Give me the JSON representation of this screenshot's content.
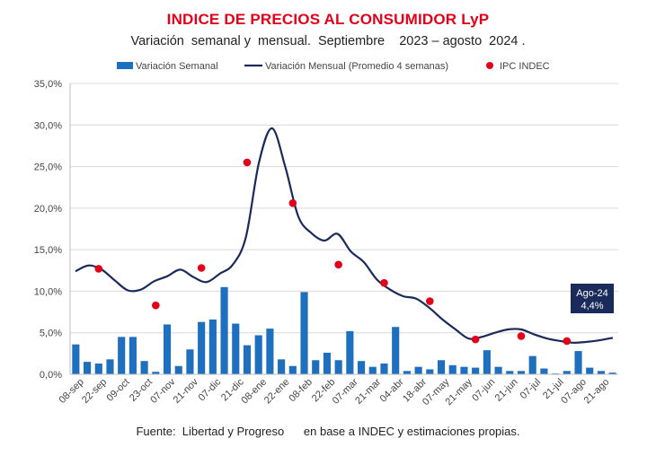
{
  "title": "INDICE DE PRECIOS AL CONSUMIDOR LyP",
  "subtitle": "Variación  semanal y  mensual.  Septiembre    2023 – agosto  2024 .",
  "source": "Fuente:  Libertad y Progreso      en base a INDEC y estimaciones propias.",
  "colors": {
    "bars": "#1f6fbf",
    "line": "#1a2a5a",
    "points": "#e3001b",
    "title": "#e3001b",
    "annotation_bg": "#1a2a5a"
  },
  "legend": {
    "bars": "Variación Semanal",
    "line": "Variación Mensual (Promedio 4 semanas)",
    "points": "IPC INDEC"
  },
  "annotation": {
    "label": "Ago-24",
    "value": "4,4%"
  },
  "chart_data": {
    "type": "bar",
    "ylim": [
      0,
      35
    ],
    "yticks": [
      "0,0%",
      "5,0%",
      "10,0%",
      "15,0%",
      "20,0%",
      "25,0%",
      "30,0%",
      "35,0%"
    ],
    "xticks": [
      "08-sep",
      "22-sep",
      "09-oct",
      "23-oct",
      "07-nov",
      "21-nov",
      "07-dic",
      "21-dic",
      "08-ene",
      "22-ene",
      "08-feb",
      "22-feb",
      "07-mar",
      "21-mar",
      "04-abr",
      "18-abr",
      "07-may",
      "21-may",
      "07-jun",
      "21-jun",
      "07-jul",
      "21-jul",
      "07-ago",
      "21-ago"
    ],
    "grid": true,
    "legend_position": "top",
    "series": [
      {
        "name": "Variación Semanal",
        "type": "bar",
        "values": [
          3.6,
          1.5,
          1.3,
          1.8,
          4.5,
          4.5,
          1.6,
          0.3,
          6.0,
          1.0,
          3.0,
          6.3,
          6.6,
          10.5,
          6.1,
          3.5,
          4.7,
          5.5,
          1.8,
          1.0,
          9.9,
          1.7,
          2.6,
          1.7,
          5.2,
          1.6,
          0.9,
          1.3,
          5.7,
          0.4,
          0.9,
          0.6,
          1.7,
          1.1,
          0.9,
          0.8,
          2.9,
          0.9,
          0.4,
          0.4,
          2.2,
          0.7,
          0.1,
          0.4,
          2.8,
          0.8,
          0.4,
          0.2
        ]
      },
      {
        "name": "Variación Mensual (Promedio 4 semanas)",
        "type": "line",
        "values": [
          12.4,
          13.1,
          12.6,
          11.3,
          10.1,
          10.2,
          11.2,
          11.8,
          12.6,
          11.7,
          11.1,
          12.1,
          13.2,
          16.5,
          25.5,
          29.6,
          25.0,
          19.0,
          17.0,
          16.1,
          16.9,
          14.8,
          13.5,
          11.4,
          10.2,
          9.4,
          9.1,
          8.0,
          6.6,
          5.4,
          4.3,
          4.5,
          5.0,
          5.4,
          5.4,
          4.8,
          4.3,
          4.0,
          3.8,
          3.9,
          4.1,
          4.4
        ]
      },
      {
        "name": "IPC INDEC",
        "type": "scatter",
        "x_bar_index": [
          2,
          7,
          11,
          15,
          19,
          23,
          27,
          31,
          35,
          39,
          43
        ],
        "values": [
          12.7,
          8.3,
          12.8,
          25.5,
          20.6,
          13.2,
          11.0,
          8.8,
          4.2,
          4.6,
          4.0
        ]
      }
    ]
  }
}
